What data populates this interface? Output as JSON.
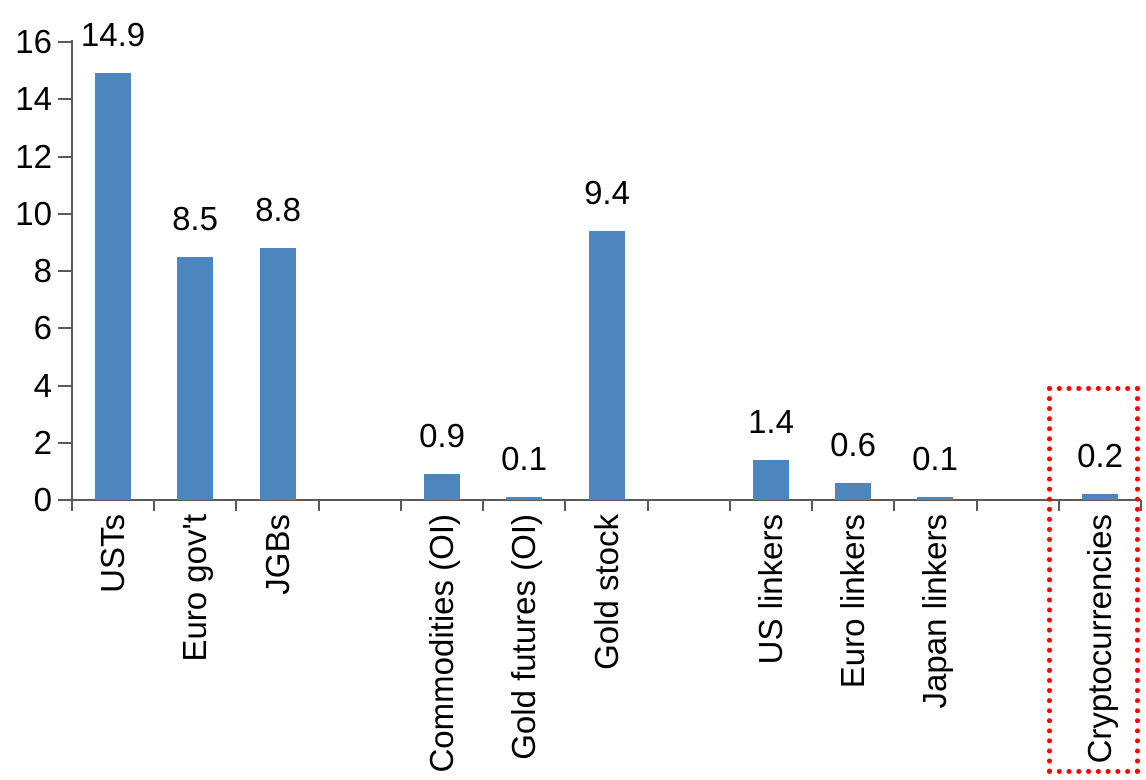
{
  "chart_data": {
    "type": "bar",
    "title": "",
    "xlabel": "",
    "ylabel": "",
    "categories": [
      "USTs",
      "Euro gov't",
      "JGBs",
      "Commodities (OI)",
      "Gold futures (OI)",
      "Gold stock",
      "US linkers",
      "Euro linkers",
      "Japan linkers",
      "Cryptocurrencies"
    ],
    "values": [
      14.9,
      8.5,
      8.8,
      0.9,
      0.1,
      9.4,
      1.4,
      0.6,
      0.1,
      0.2
    ],
    "value_labels": [
      "14.9",
      "8.5",
      "8.8",
      "0.9",
      "0.1",
      "9.4",
      "1.4",
      "0.6",
      "0.1",
      "0.2"
    ],
    "slots": [
      0,
      1,
      2,
      4,
      5,
      6,
      8,
      9,
      10,
      12
    ],
    "total_slots": 13,
    "y_ticks": [
      0,
      2,
      4,
      6,
      8,
      10,
      12,
      14,
      16
    ],
    "ylim": [
      0,
      16
    ],
    "grid": false,
    "legend": false,
    "bar_color": "#4D86BC",
    "axis_color": "#595959",
    "text_color": "#000000",
    "highlight": {
      "category": "Cryptocurrencies",
      "slot": 12,
      "style": "dotted",
      "color": "#FF0000"
    }
  }
}
